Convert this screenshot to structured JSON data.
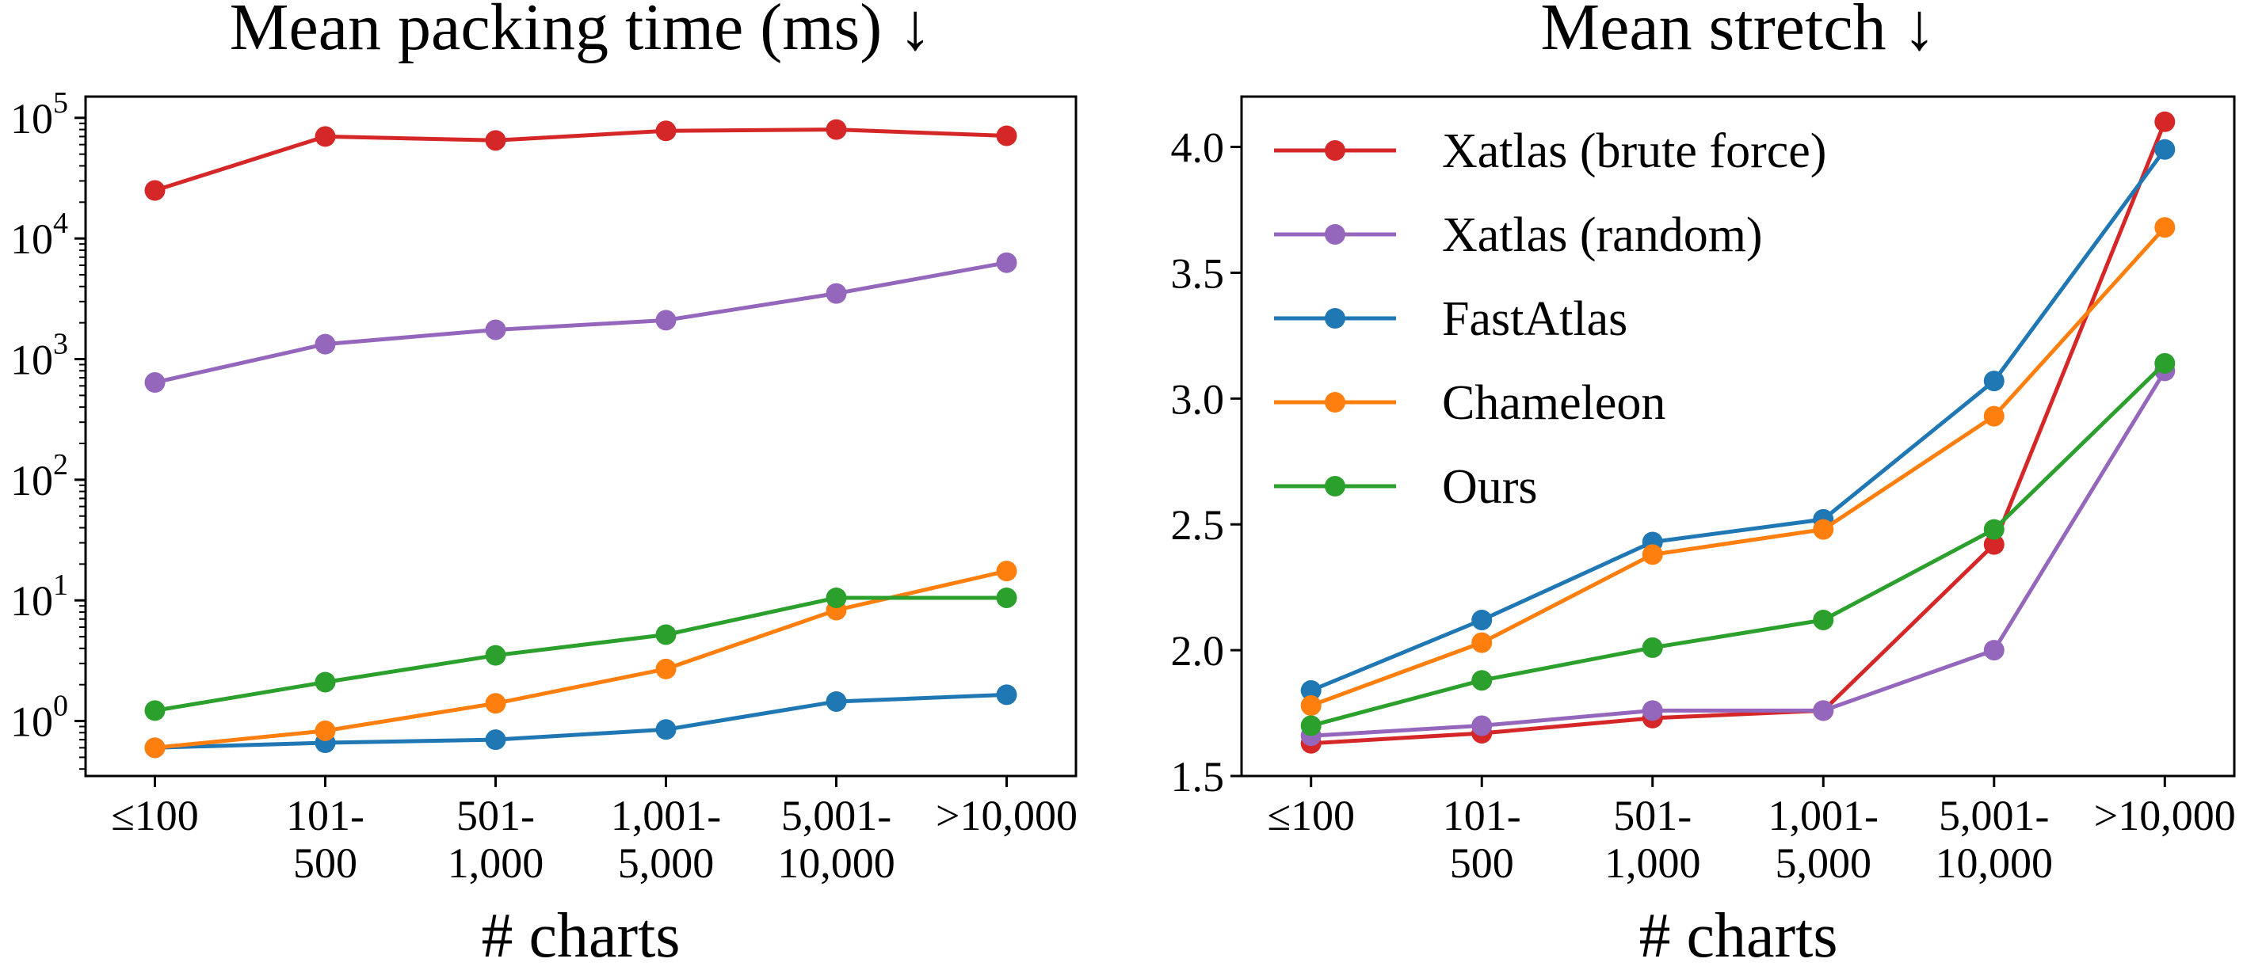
{
  "chart_data": [
    {
      "type": "line",
      "title": "Mean packing time (ms) ↓",
      "xlabel": "# charts",
      "ylabel": "",
      "yscale": "log",
      "ylim": [
        0.35,
        150000
      ],
      "categories": [
        [
          "≤100"
        ],
        [
          "101-",
          "500"
        ],
        [
          "501-",
          "1,000"
        ],
        [
          "1,001-",
          "5,000"
        ],
        [
          "5,001-",
          "10,000"
        ],
        [
          ">10,000"
        ]
      ],
      "yticks": [
        {
          "value": 1,
          "base": "10",
          "exp": "0"
        },
        {
          "value": 10,
          "base": "10",
          "exp": "1"
        },
        {
          "value": 100,
          "base": "10",
          "exp": "2"
        },
        {
          "value": 1000,
          "base": "10",
          "exp": "3"
        },
        {
          "value": 10000,
          "base": "10",
          "exp": "4"
        },
        {
          "value": 100000,
          "base": "10",
          "exp": "5"
        }
      ],
      "series": [
        {
          "name": "Xatlas (brute force)",
          "color": "#d62728",
          "values": [
            25000,
            70000,
            65000,
            78000,
            80000,
            71000
          ]
        },
        {
          "name": "Xatlas (random)",
          "color": "#9467bd",
          "values": [
            640,
            1330,
            1750,
            2100,
            3500,
            6300
          ]
        },
        {
          "name": "FastAtlas",
          "color": "#1f77b4",
          "values": [
            0.6,
            0.66,
            0.7,
            0.85,
            1.45,
            1.65
          ]
        },
        {
          "name": "Chameleon",
          "color": "#ff7f0e",
          "values": [
            0.6,
            0.83,
            1.4,
            2.7,
            8.3,
            17.5
          ]
        },
        {
          "name": "Ours",
          "color": "#2ca02c",
          "values": [
            1.22,
            2.1,
            3.5,
            5.2,
            10.5,
            10.5
          ]
        }
      ]
    },
    {
      "type": "line",
      "title": "Mean stretch ↓",
      "xlabel": "# charts",
      "ylabel": "",
      "yscale": "linear",
      "ylim": [
        1.5,
        4.2
      ],
      "categories": [
        [
          "≤100"
        ],
        [
          "101-",
          "500"
        ],
        [
          "501-",
          "1,000"
        ],
        [
          "1,001-",
          "5,000"
        ],
        [
          "5,001-",
          "10,000"
        ],
        [
          ">10,000"
        ]
      ],
      "yticks": [
        {
          "value": 1.5,
          "label": "1.5"
        },
        {
          "value": 2.0,
          "label": "2.0"
        },
        {
          "value": 2.5,
          "label": "2.5"
        },
        {
          "value": 3.0,
          "label": "3.0"
        },
        {
          "value": 3.5,
          "label": "3.5"
        },
        {
          "value": 4.0,
          "label": "4.0"
        }
      ],
      "legend": "top-left",
      "series": [
        {
          "name": "Xatlas (brute force)",
          "color": "#d62728",
          "values": [
            1.63,
            1.67,
            1.73,
            1.76,
            2.42,
            4.1
          ]
        },
        {
          "name": "Xatlas (random)",
          "color": "#9467bd",
          "values": [
            1.66,
            1.7,
            1.76,
            1.76,
            2.0,
            3.11
          ]
        },
        {
          "name": "FastAtlas",
          "color": "#1f77b4",
          "values": [
            1.84,
            2.12,
            2.43,
            2.52,
            3.07,
            3.99
          ]
        },
        {
          "name": "Chameleon",
          "color": "#ff7f0e",
          "values": [
            1.78,
            2.03,
            2.38,
            2.48,
            2.93,
            3.68
          ]
        },
        {
          "name": "Ours",
          "color": "#2ca02c",
          "values": [
            1.7,
            1.88,
            2.01,
            2.12,
            2.48,
            3.14
          ]
        }
      ]
    }
  ]
}
